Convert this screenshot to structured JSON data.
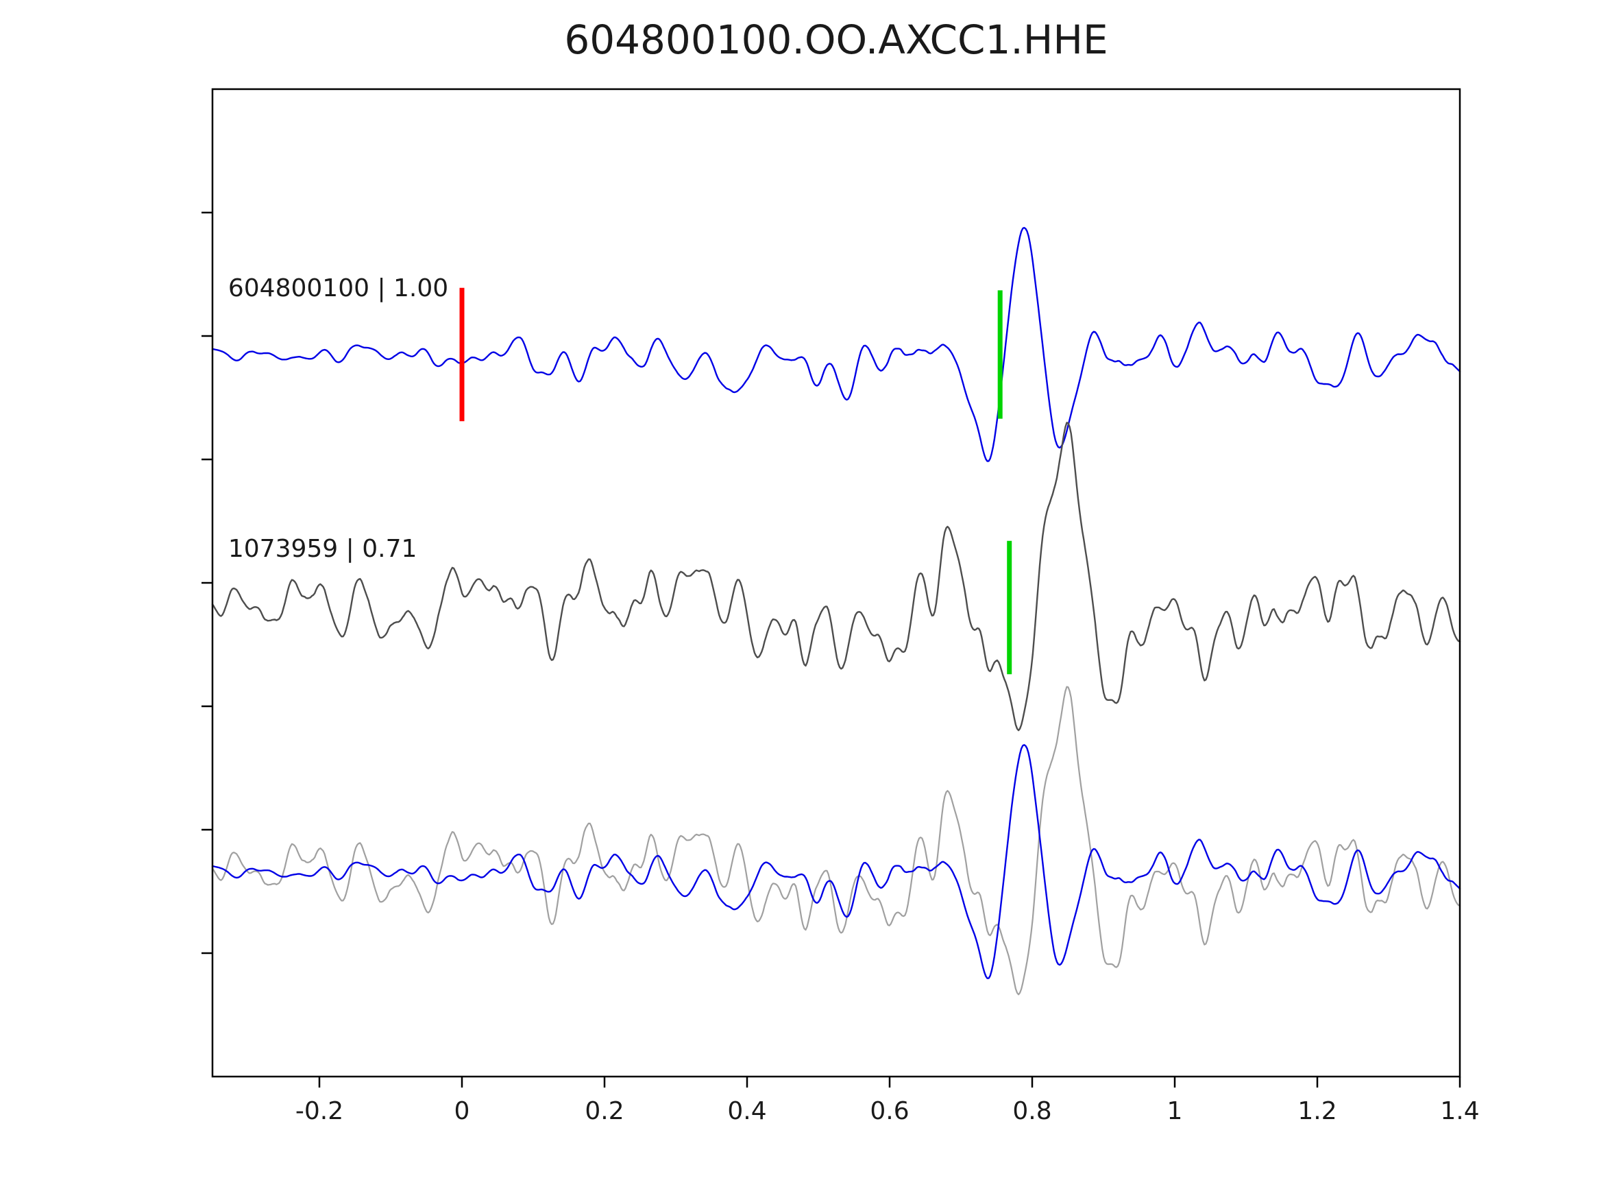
{
  "chart_data": {
    "type": "line",
    "title": "604800100.OO.AXCC1.HHE",
    "xlabel": "",
    "ylabel": "",
    "grid": false,
    "legend": null,
    "xlim": [
      -0.35,
      1.4
    ],
    "ylim": [
      -1,
      3
    ],
    "x_ticks": [
      -0.2,
      0,
      0.2,
      0.4,
      0.6,
      0.8,
      1,
      1.2,
      1.4
    ],
    "x_tick_labels": [
      "-0.2",
      "0",
      "0.2",
      "0.4",
      "0.6",
      "0.8",
      "1",
      "1.2",
      "1.4"
    ],
    "y_ticks": [
      -0.5,
      0,
      0.5,
      1,
      1.5,
      2,
      2.5
    ],
    "axis_color": "#000000",
    "tick_label_color": "#262626",
    "samples": 880,
    "row_baselines": [
      1.925,
      0.9,
      -0.17
    ],
    "trace_labels": [
      {
        "text": "604800100 | 1.00",
        "x": -0.328,
        "y": 2.161,
        "row": 0
      },
      {
        "text": "1073959 | 0.71",
        "x": -0.328,
        "y": 1.106,
        "row": 1
      }
    ],
    "traces": [
      {
        "name": "template-trace",
        "row": 0,
        "color": "#0000e6",
        "width": 2.4,
        "seed": 11,
        "noise_amp": 0.17,
        "smooth_window": 9,
        "smooth_passes": 3,
        "envelope": [
          [
            -0.35,
            0.5
          ],
          [
            0.02,
            0.55
          ],
          [
            0.1,
            1.15
          ],
          [
            0.25,
            0.95
          ],
          [
            0.45,
            1.0
          ],
          [
            0.62,
            1.15
          ],
          [
            0.75,
            0.95
          ],
          [
            0.85,
            1.0
          ],
          [
            1.0,
            1.15
          ],
          [
            1.4,
            0.95
          ]
        ],
        "wavelets": [
          {
            "x0": 0.79,
            "amp": 0.55,
            "period": 0.115,
            "width": 0.06
          }
        ]
      },
      {
        "name": "detection-trace",
        "row": 1,
        "color": "#4d4d4d",
        "width": 2.4,
        "seed": 97,
        "noise_amp": 0.26,
        "smooth_window": 7,
        "smooth_passes": 3,
        "envelope": [
          [
            -0.35,
            0.75
          ],
          [
            0.05,
            1.0
          ],
          [
            0.35,
            1.05
          ],
          [
            0.55,
            0.95
          ],
          [
            0.7,
            1.15
          ],
          [
            0.8,
            1.0
          ],
          [
            1.0,
            1.2
          ],
          [
            1.4,
            0.85
          ]
        ],
        "wavelets": [
          {
            "x0": 0.845,
            "amp": 0.52,
            "period": 0.16,
            "width": 0.09
          }
        ]
      },
      {
        "name": "overlay-detection-trace",
        "row": 2,
        "color": "#a0a0a0",
        "width": 2.2,
        "seed": 97,
        "noise_amp": 0.26,
        "smooth_window": 7,
        "smooth_passes": 3,
        "envelope": [
          [
            -0.35,
            0.75
          ],
          [
            0.05,
            1.0
          ],
          [
            0.35,
            1.05
          ],
          [
            0.55,
            0.95
          ],
          [
            0.7,
            1.15
          ],
          [
            0.8,
            1.0
          ],
          [
            1.0,
            1.2
          ],
          [
            1.4,
            0.85
          ]
        ],
        "wavelets": [
          {
            "x0": 0.845,
            "amp": 0.52,
            "period": 0.16,
            "width": 0.09
          }
        ]
      },
      {
        "name": "overlay-template-trace",
        "row": 2,
        "color": "#0000e6",
        "width": 2.4,
        "seed": 11,
        "noise_amp": 0.17,
        "smooth_window": 9,
        "smooth_passes": 3,
        "envelope": [
          [
            -0.35,
            0.5
          ],
          [
            0.02,
            0.55
          ],
          [
            0.1,
            1.15
          ],
          [
            0.25,
            0.95
          ],
          [
            0.45,
            1.0
          ],
          [
            0.62,
            1.15
          ],
          [
            0.75,
            0.95
          ],
          [
            0.85,
            1.0
          ],
          [
            1.0,
            1.15
          ],
          [
            1.4,
            0.95
          ]
        ],
        "wavelets": [
          {
            "x0": 0.79,
            "amp": 0.55,
            "period": 0.115,
            "width": 0.06
          }
        ]
      }
    ],
    "markers": [
      {
        "name": "template-origin-marker",
        "row": 0,
        "x": 0.0,
        "color": "#ff0000",
        "half_height": 0.27
      },
      {
        "name": "template-pick-marker",
        "row": 0,
        "x": 0.755,
        "color": "#00d400",
        "half_height": 0.26
      },
      {
        "name": "detection-pick-marker",
        "row": 1,
        "x": 0.768,
        "color": "#00d400",
        "half_height": 0.27
      }
    ]
  }
}
